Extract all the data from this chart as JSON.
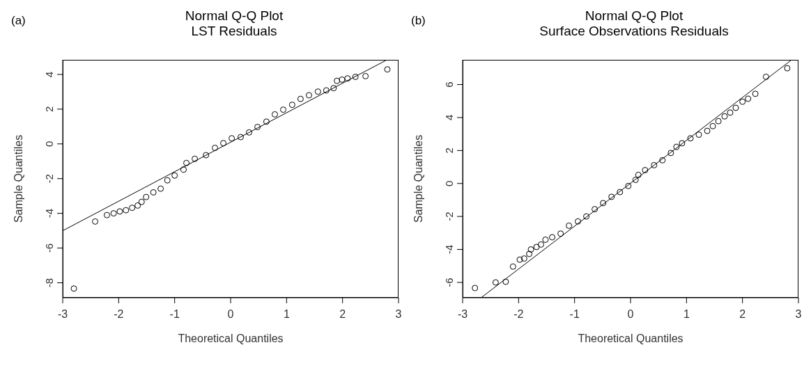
{
  "chart_data": [
    {
      "type": "scatter",
      "title": "Normal Q-Q Plot",
      "subtitle": "LST Residuals",
      "xlabel": "Theoretical Quantiles",
      "ylabel": "Sample Quantiles",
      "annotations": [
        "(a)"
      ],
      "xlim": [
        -3,
        3
      ],
      "ylim": [
        -8.86,
        4.84
      ],
      "xticks": [
        -3,
        -2,
        -1,
        0,
        1,
        2,
        3
      ],
      "yticks": [
        -8,
        -6,
        -4,
        -2,
        0,
        2,
        4
      ],
      "series": [
        {
          "marker": "circle",
          "color": "#000000",
          "x": [
            -2.8,
            -2.42,
            -2.21,
            -2.09,
            -1.98,
            -1.87,
            -1.76,
            -1.66,
            -1.59,
            -1.51,
            -1.38,
            -1.25,
            -1.13,
            -1.0,
            -0.84,
            -0.79,
            -0.64,
            -0.44,
            -0.28,
            -0.13,
            0.02,
            0.18,
            0.33,
            0.48,
            0.64,
            0.79,
            0.94,
            1.1,
            1.25,
            1.4,
            1.56,
            1.71,
            1.84,
            1.9,
            1.99,
            2.09,
            2.23,
            2.41,
            2.8
          ],
          "values": [
            -8.33,
            -4.47,
            -4.1,
            -4.0,
            -3.89,
            -3.82,
            -3.68,
            -3.55,
            -3.34,
            -3.06,
            -2.79,
            -2.58,
            -2.1,
            -1.82,
            -1.48,
            -1.1,
            -0.86,
            -0.65,
            -0.23,
            0.04,
            0.32,
            0.39,
            0.66,
            0.97,
            1.28,
            1.7,
            1.97,
            2.25,
            2.59,
            2.8,
            3.01,
            3.08,
            3.21,
            3.63,
            3.7,
            3.77,
            3.86,
            3.9,
            4.29
          ]
        },
        {
          "type": "line",
          "marker": "none",
          "color": "#000000",
          "x": [
            -3,
            2.77
          ],
          "values": [
            -5,
            4.8
          ]
        }
      ]
    },
    {
      "type": "scatter",
      "title": "Normal Q-Q Plot",
      "subtitle": "Surface Observations Residuals",
      "xlabel": "Theoretical Quantiles",
      "ylabel": "Sample Quantiles",
      "annotations": [
        "(b)"
      ],
      "xlim": [
        -3,
        3
      ],
      "ylim": [
        -6.93,
        7.5
      ],
      "xticks": [
        -3,
        -2,
        -1,
        0,
        1,
        2,
        3
      ],
      "yticks": [
        -6,
        -4,
        -2,
        0,
        2,
        4,
        6
      ],
      "series": [
        {
          "marker": "circle",
          "color": "#000000",
          "x": [
            -2.78,
            -2.41,
            -2.23,
            -2.1,
            -1.98,
            -1.9,
            -1.81,
            -1.78,
            -1.68,
            -1.6,
            -1.52,
            -1.4,
            -1.25,
            -1.1,
            -0.94,
            -0.79,
            -0.64,
            -0.49,
            -0.34,
            -0.19,
            -0.04,
            0.09,
            0.14,
            0.26,
            0.42,
            0.57,
            0.72,
            0.82,
            0.92,
            1.07,
            1.22,
            1.37,
            1.47,
            1.57,
            1.68,
            1.78,
            1.88,
            2.0,
            2.1,
            2.23,
            2.42,
            2.8
          ],
          "values": [
            -6.34,
            -6.0,
            -5.96,
            -5.04,
            -4.62,
            -4.55,
            -4.27,
            -4.0,
            -3.85,
            -3.7,
            -3.41,
            -3.26,
            -3.04,
            -2.56,
            -2.3,
            -2.0,
            -1.56,
            -1.19,
            -0.81,
            -0.52,
            -0.15,
            0.22,
            0.52,
            0.81,
            1.11,
            1.41,
            1.85,
            2.22,
            2.44,
            2.74,
            2.96,
            3.19,
            3.48,
            3.78,
            4.07,
            4.3,
            4.59,
            4.96,
            5.14,
            5.44,
            6.47,
            6.99
          ]
        },
        {
          "type": "line",
          "marker": "none",
          "color": "#000000",
          "x": [
            -2.67,
            2.87
          ],
          "values": [
            -6.93,
            7.48
          ]
        }
      ]
    }
  ]
}
